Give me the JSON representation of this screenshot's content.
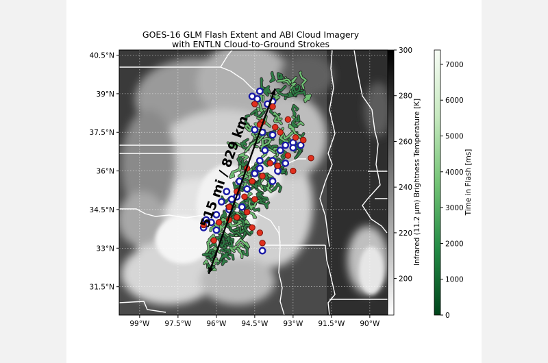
{
  "chart_data": {
    "type": "map",
    "title": "GOES-16 GLM Flash Extent and ABI Cloud Imagery",
    "subtitle": "with ENTLN Cloud-to-Ground Strokes",
    "lon_range": [
      -99.8,
      -89.3
    ],
    "lat_range": [
      30.4,
      40.7
    ],
    "lon_ticks": [
      {
        "value": -99.0,
        "label": "99°W"
      },
      {
        "value": -97.5,
        "label": "97.5°W"
      },
      {
        "value": -96.0,
        "label": "96°W"
      },
      {
        "value": -94.5,
        "label": "94.5°W"
      },
      {
        "value": -93.0,
        "label": "93°W"
      },
      {
        "value": -91.5,
        "label": "91.5°W"
      },
      {
        "value": -90.0,
        "label": "90°W"
      }
    ],
    "lat_ticks": [
      {
        "value": 40.5,
        "label": "40.5°N"
      },
      {
        "value": 39.0,
        "label": "39°N"
      },
      {
        "value": 37.5,
        "label": "37.5°N"
      },
      {
        "value": 36.0,
        "label": "36°N"
      },
      {
        "value": 34.5,
        "label": "34.5°N"
      },
      {
        "value": 33.0,
        "label": "33°N"
      },
      {
        "value": 31.5,
        "label": "31.5°N"
      }
    ],
    "grid": true,
    "annotation": {
      "text": "515 mi / 829 km",
      "from": {
        "lon": -96.3,
        "lat": 32.0
      },
      "to": {
        "lon": -93.7,
        "lat": 39.2
      }
    },
    "colorbar_temperature": {
      "label": "Infrared (11.2 µm) Brightness Temperature [K]",
      "range": [
        184,
        300
      ],
      "colors": [
        "#ffffff",
        "#000000"
      ],
      "ticks": [
        {
          "value": 200,
          "label": "200"
        },
        {
          "value": 220,
          "label": "220"
        },
        {
          "value": 240,
          "label": "240"
        },
        {
          "value": 260,
          "label": "260"
        },
        {
          "value": 280,
          "label": "280"
        },
        {
          "value": 300,
          "label": "300"
        }
      ]
    },
    "colorbar_flash": {
      "label": "Time in Flash [ms]",
      "range": [
        0,
        7400
      ],
      "colors": [
        "#00441b",
        "#238b45",
        "#74c476",
        "#c7e9c0",
        "#f7fcf5"
      ],
      "ticks": [
        {
          "value": 0,
          "label": "0"
        },
        {
          "value": 1000,
          "label": "1000"
        },
        {
          "value": 2000,
          "label": "2000"
        },
        {
          "value": 3000,
          "label": "3000"
        },
        {
          "value": 4000,
          "label": "4000"
        },
        {
          "value": 5000,
          "label": "5000"
        },
        {
          "value": 6000,
          "label": "6000"
        },
        {
          "value": 7000,
          "label": "7000"
        }
      ]
    },
    "strokes_blue": [
      [
        -94.3,
        39.1
      ],
      [
        -94.6,
        38.9
      ],
      [
        -94.4,
        38.8
      ],
      [
        -94.0,
        38.6
      ],
      [
        -93.8,
        38.7
      ],
      [
        -94.5,
        37.6
      ],
      [
        -94.2,
        37.5
      ],
      [
        -93.8,
        37.4
      ],
      [
        -93.3,
        37.0
      ],
      [
        -93.0,
        37.1
      ],
      [
        -92.7,
        37.0
      ],
      [
        -93.0,
        36.9
      ],
      [
        -93.5,
        36.8
      ],
      [
        -94.1,
        36.8
      ],
      [
        -93.8,
        36.4
      ],
      [
        -94.3,
        36.4
      ],
      [
        -94.3,
        36.1
      ],
      [
        -93.6,
        36.0
      ],
      [
        -93.3,
        36.3
      ],
      [
        -94.5,
        35.9
      ],
      [
        -93.8,
        35.6
      ],
      [
        -94.8,
        35.3
      ],
      [
        -95.1,
        35.6
      ],
      [
        -95.6,
        35.2
      ],
      [
        -95.2,
        35.0
      ],
      [
        -95.4,
        34.9
      ],
      [
        -95.8,
        34.8
      ],
      [
        -95.0,
        34.6
      ],
      [
        -95.5,
        34.5
      ],
      [
        -96.0,
        34.3
      ],
      [
        -96.4,
        34.1
      ],
      [
        -96.2,
        34.0
      ],
      [
        -96.5,
        33.8
      ],
      [
        -96.0,
        33.7
      ],
      [
        -94.2,
        32.9
      ]
    ],
    "strokes_red": [
      [
        -94.5,
        38.6
      ],
      [
        -93.8,
        38.5
      ],
      [
        -93.2,
        38.0
      ],
      [
        -94.2,
        37.9
      ],
      [
        -93.7,
        37.7
      ],
      [
        -94.3,
        37.8
      ],
      [
        -93.5,
        37.5
      ],
      [
        -92.9,
        37.3
      ],
      [
        -92.6,
        37.2
      ],
      [
        -92.3,
        36.5
      ],
      [
        -93.2,
        36.6
      ],
      [
        -93.9,
        36.3
      ],
      [
        -93.6,
        36.2
      ],
      [
        -93.0,
        36.0
      ],
      [
        -94.8,
        36.1
      ],
      [
        -94.2,
        35.8
      ],
      [
        -94.6,
        35.6
      ],
      [
        -95.2,
        35.2
      ],
      [
        -94.9,
        35.0
      ],
      [
        -94.5,
        34.9
      ],
      [
        -95.5,
        34.6
      ],
      [
        -94.8,
        34.4
      ],
      [
        -95.2,
        34.2
      ],
      [
        -94.6,
        33.8
      ],
      [
        -95.5,
        34.1
      ],
      [
        -95.9,
        34.0
      ],
      [
        -96.1,
        33.3
      ],
      [
        -96.5,
        33.9
      ],
      [
        -94.3,
        33.6
      ],
      [
        -94.2,
        33.2
      ]
    ]
  }
}
